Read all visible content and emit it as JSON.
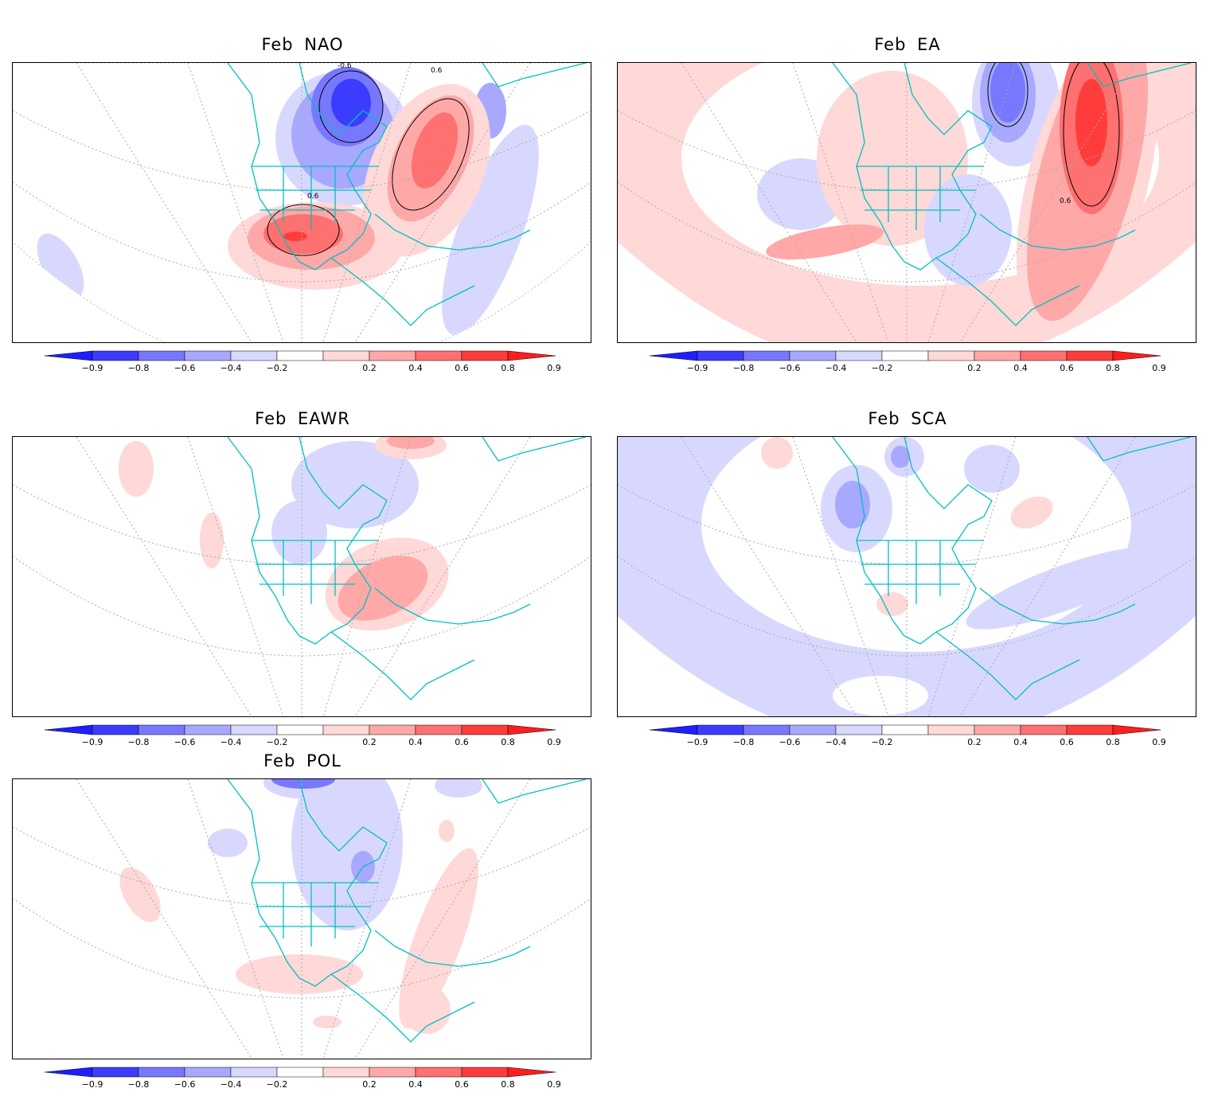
{
  "colorbar": {
    "colors": [
      "#1e1eff",
      "#3c3cff",
      "#7878ff",
      "#a8a8ff",
      "#d8d8ff",
      "#ffffff",
      "#ffd8d8",
      "#ffa8a8",
      "#ff7070",
      "#ff3c3c",
      "#ff1e1e"
    ],
    "labels": [
      "−0.9",
      "−0.8",
      "−0.6",
      "−0.4",
      "−0.2",
      "0.2",
      "0.4",
      "0.6",
      "0.8",
      "0.9"
    ]
  },
  "panels": [
    {
      "title": "Feb  NAO",
      "contour_labels": [
        "-0.6",
        "0.6",
        "0.6"
      ]
    },
    {
      "title": "Feb  EA",
      "contour_labels": [
        "0.6"
      ]
    },
    {
      "title": "Feb  EAWR",
      "contour_labels": []
    },
    {
      "title": "Feb  SCA",
      "contour_labels": []
    },
    {
      "title": "Feb  POL",
      "contour_labels": []
    }
  ]
}
